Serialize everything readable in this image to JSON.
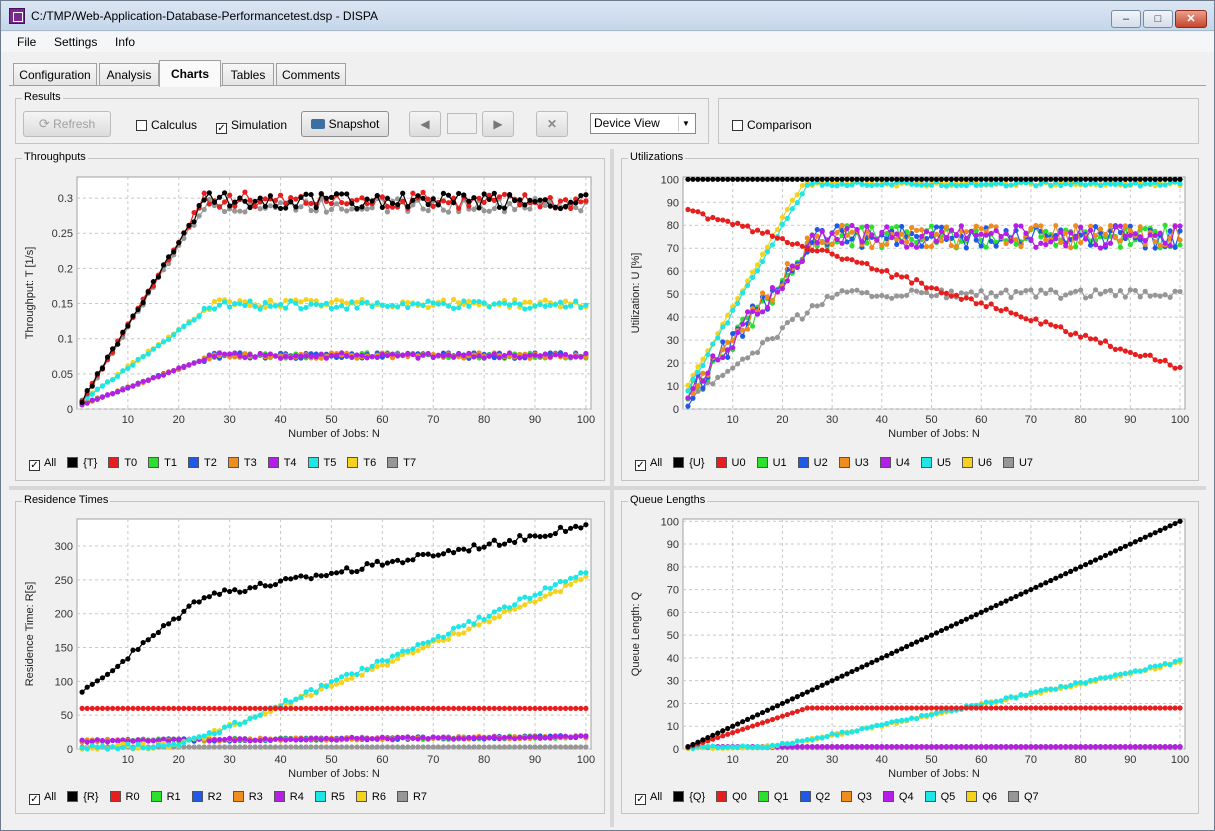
{
  "window": {
    "title": "C:/TMP/Web-Application-Database-Performancetest.dsp - DISPA",
    "minimize": "–",
    "maximize": "□",
    "close": "✕"
  },
  "menu": {
    "items": [
      "File",
      "Settings",
      "Info"
    ]
  },
  "tabs": [
    "Configuration",
    "Analysis",
    "Charts",
    "Tables",
    "Comments"
  ],
  "active_tab": "Charts",
  "results": {
    "title": "Results",
    "refresh": "Refresh",
    "calculus": "Calculus",
    "calculus_checked": false,
    "simulation": "Simulation",
    "simulation_checked": true,
    "snapshot": "Snapshot",
    "view_select": "Device View",
    "comparison": "Comparison",
    "comparison_checked": false
  },
  "colors": {
    "total": "#000000",
    "dev0": "#e61e1e",
    "dev1": "#2ee02e",
    "dev2": "#1e5ae6",
    "dev3": "#f08c1e",
    "dev4": "#b41ee6",
    "dev5": "#1ee6e6",
    "dev6": "#f5d21e",
    "dev7": "#969696"
  },
  "chart_data": [
    {
      "id": "throughputs",
      "type": "line",
      "title": "Throughputs",
      "xlabel": "Number of Jobs: N",
      "ylabel": "Throughput: T [1/s]",
      "xlim": [
        0,
        101
      ],
      "ylim": [
        0,
        0.33
      ],
      "xticks": [
        10,
        20,
        30,
        40,
        50,
        60,
        70,
        80,
        90,
        100
      ],
      "yticks": [
        0,
        0.05,
        0.1,
        0.15,
        0.2,
        0.25,
        0.3
      ],
      "ytick_labels": [
        "0",
        "0.05",
        "0.1",
        "0.15",
        "0.2",
        "0.25",
        "0.3"
      ],
      "grid": true,
      "legend_all": "All",
      "legend": [
        "{T}",
        "T0",
        "T1",
        "T2",
        "T3",
        "T4",
        "T5",
        "T6",
        "T7"
      ],
      "model": {
        "total": {
          "plateau": 0.297,
          "knee": 25,
          "noise": 0.012
        },
        "dev0": {
          "plateau": 0.297,
          "knee": 25,
          "noise": 0.012
        },
        "dev1": {
          "plateau": 0.076,
          "knee": 27,
          "noise": 0.004,
          "start": 0.004
        },
        "dev2": {
          "plateau": 0.076,
          "knee": 27,
          "noise": 0.004,
          "start": 0.004
        },
        "dev3": {
          "plateau": 0.076,
          "knee": 27,
          "noise": 0.004,
          "start": 0.004
        },
        "dev4": {
          "plateau": 0.076,
          "knee": 27,
          "noise": 0.004,
          "start": 0.004
        },
        "dev5": {
          "plateau": 0.148,
          "knee": 27,
          "noise": 0.006,
          "start": 0.006
        },
        "dev6": {
          "plateau": 0.15,
          "knee": 27,
          "noise": 0.006,
          "start": 0.006
        },
        "dev7": {
          "plateau": 0.29,
          "knee": 25,
          "noise": 0.01
        }
      }
    },
    {
      "id": "utilizations",
      "type": "line",
      "title": "Utilizations",
      "xlabel": "Number of Jobs: N",
      "ylabel": "Utilization: U [%]",
      "xlim": [
        0,
        101
      ],
      "ylim": [
        0,
        101
      ],
      "xticks": [
        10,
        20,
        30,
        40,
        50,
        60,
        70,
        80,
        90,
        100
      ],
      "yticks": [
        0,
        10,
        20,
        30,
        40,
        50,
        60,
        70,
        80,
        90,
        100
      ],
      "ytick_labels": [
        "0",
        "10",
        "20",
        "30",
        "40",
        "50",
        "60",
        "70",
        "80",
        "90",
        "100"
      ],
      "grid": true,
      "legend_all": "All",
      "legend": [
        "{U}",
        "U0",
        "U1",
        "U2",
        "U3",
        "U4",
        "U5",
        "U6",
        "U7"
      ],
      "model": {
        "total": {
          "const": 100
        },
        "dev0": {
          "start": 87,
          "mid": 74,
          "end": 18
        },
        "dev1": {
          "plateau": 75,
          "knee": 27,
          "noise": 5,
          "start": 3
        },
        "dev2": {
          "plateau": 75,
          "knee": 27,
          "noise": 5,
          "start": 3
        },
        "dev3": {
          "plateau": 75,
          "knee": 27,
          "noise": 5,
          "start": 3
        },
        "dev4": {
          "plateau": 75,
          "knee": 27,
          "noise": 5,
          "start": 3
        },
        "dev5": {
          "plateau": 98,
          "knee": 25,
          "noise": 1,
          "start": 5
        },
        "dev6": {
          "plateau": 98,
          "knee": 24,
          "noise": 1,
          "start": 6
        },
        "dev7": {
          "plateau": 50,
          "knee": 30,
          "noise": 2,
          "start": 3
        }
      }
    },
    {
      "id": "residence",
      "type": "line",
      "title": "Residence Times",
      "xlabel": "Number of Jobs: N",
      "ylabel": "Residence Time: R[s]",
      "xlim": [
        0,
        101
      ],
      "ylim": [
        0,
        340
      ],
      "xticks": [
        10,
        20,
        30,
        40,
        50,
        60,
        70,
        80,
        90,
        100
      ],
      "yticks": [
        0,
        50,
        100,
        150,
        200,
        250,
        300
      ],
      "ytick_labels": [
        "0",
        "50",
        "100",
        "150",
        "200",
        "250",
        "300"
      ],
      "grid": true,
      "legend_all": "All",
      "legend": [
        "{R}",
        "R0",
        "R1",
        "R2",
        "R3",
        "R4",
        "R5",
        "R6",
        "R7"
      ],
      "model": {
        "total": {
          "base": 76,
          "knee": 25,
          "end": 330
        },
        "dev0": {
          "const": 60
        },
        "dev1": {
          "base": 12,
          "end": 18,
          "noise": 2
        },
        "dev2": {
          "base": 12,
          "end": 18,
          "noise": 2
        },
        "dev3": {
          "base": 12,
          "end": 18,
          "noise": 2
        },
        "dev4": {
          "base": 12,
          "end": 18,
          "noise": 2
        },
        "dev5": {
          "base": 2,
          "knee": 20,
          "end": 262
        },
        "dev6": {
          "base": 2,
          "knee": 20,
          "end": 252
        },
        "dev7": {
          "const": 3
        }
      }
    },
    {
      "id": "queue",
      "type": "line",
      "title": "Queue Lengths",
      "xlabel": "Number of Jobs: N",
      "ylabel": "Queue Length: Q",
      "xlim": [
        0,
        101
      ],
      "ylim": [
        0,
        101
      ],
      "xticks": [
        10,
        20,
        30,
        40,
        50,
        60,
        70,
        80,
        90,
        100
      ],
      "yticks": [
        0,
        10,
        20,
        30,
        40,
        50,
        60,
        70,
        80,
        90,
        100
      ],
      "ytick_labels": [
        "0",
        "10",
        "20",
        "30",
        "40",
        "50",
        "60",
        "70",
        "80",
        "90",
        "100"
      ],
      "grid": true,
      "legend_all": "All",
      "legend": [
        "{Q}",
        "Q0",
        "Q1",
        "Q2",
        "Q3",
        "Q4",
        "Q5",
        "Q6",
        "Q7"
      ],
      "model": {
        "total": {
          "linear": 1
        },
        "dev0": {
          "plateau": 18,
          "knee": 25
        },
        "dev1": {
          "const": 1
        },
        "dev2": {
          "const": 1
        },
        "dev3": {
          "const": 1
        },
        "dev4": {
          "const": 1
        },
        "dev5": {
          "base": 0.5,
          "knee": 18,
          "end": 38.5
        },
        "dev6": {
          "base": 0.5,
          "knee": 18,
          "end": 38
        },
        "dev7": {
          "const": 0.6
        }
      }
    }
  ]
}
